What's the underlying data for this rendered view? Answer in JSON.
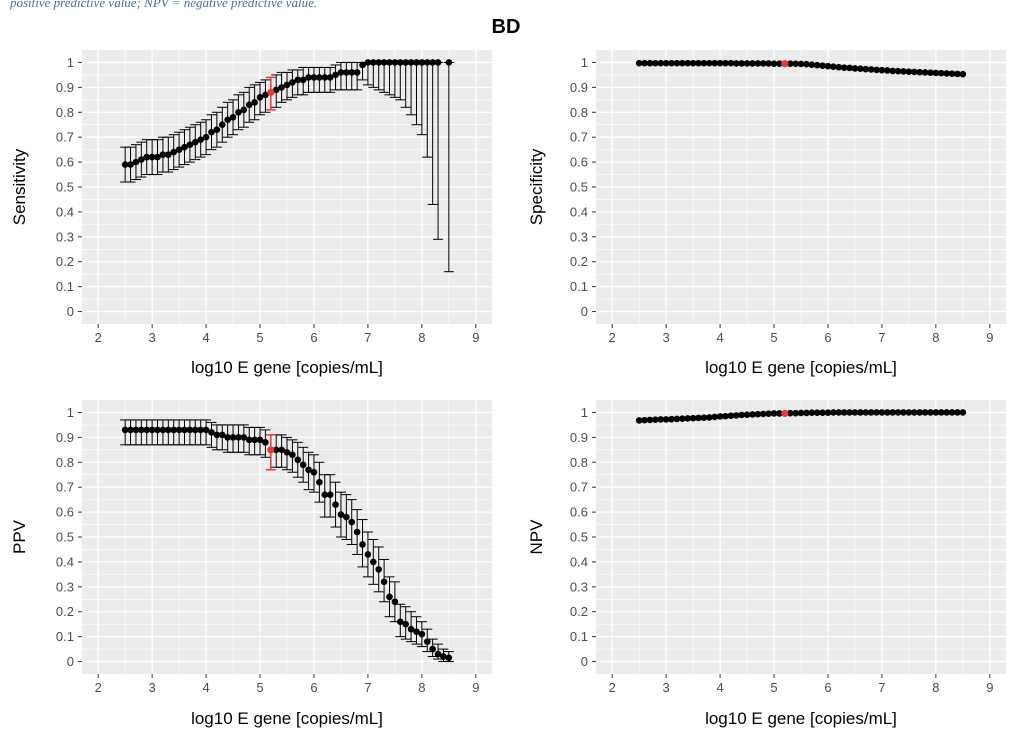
{
  "caption_fragment": "positive predictive value; NPV = negative predictive value.",
  "figure_title": "BD",
  "colors": {
    "panel_bg": "#ebebeb",
    "grid": "#ffffff",
    "point": "#000000",
    "highlight": "#e8383a"
  },
  "chart_data": [
    {
      "type": "scatter",
      "panel": "top-left",
      "xlabel": "log10 E gene [copies/mL]",
      "ylabel": "Sensitivity",
      "xlim": [
        1.7,
        9.3
      ],
      "ylim": [
        -0.05,
        1.05
      ],
      "xticks": [
        2,
        3,
        4,
        5,
        6,
        7,
        8,
        9
      ],
      "yticks": [
        "0",
        "0.1",
        "0.2",
        "0.3",
        "0.4",
        "0.5",
        "0.6",
        "0.7",
        "0.8",
        "0.9",
        "1"
      ],
      "error_bars": true,
      "highlight": {
        "x": 5.2,
        "y": 0.88,
        "lo": 0.81,
        "hi": 0.94
      },
      "points": [
        [
          2.5,
          0.59,
          0.52,
          0.66
        ],
        [
          2.6,
          0.59,
          0.52,
          0.66
        ],
        [
          2.7,
          0.6,
          0.53,
          0.67
        ],
        [
          2.8,
          0.61,
          0.54,
          0.68
        ],
        [
          2.9,
          0.62,
          0.55,
          0.69
        ],
        [
          3.0,
          0.62,
          0.55,
          0.69
        ],
        [
          3.1,
          0.62,
          0.55,
          0.69
        ],
        [
          3.2,
          0.63,
          0.56,
          0.7
        ],
        [
          3.3,
          0.63,
          0.56,
          0.7
        ],
        [
          3.4,
          0.64,
          0.57,
          0.71
        ],
        [
          3.5,
          0.65,
          0.58,
          0.72
        ],
        [
          3.6,
          0.66,
          0.59,
          0.73
        ],
        [
          3.7,
          0.67,
          0.6,
          0.74
        ],
        [
          3.8,
          0.68,
          0.61,
          0.75
        ],
        [
          3.9,
          0.69,
          0.62,
          0.76
        ],
        [
          4.0,
          0.7,
          0.63,
          0.77
        ],
        [
          4.1,
          0.72,
          0.65,
          0.79
        ],
        [
          4.2,
          0.73,
          0.66,
          0.8
        ],
        [
          4.3,
          0.75,
          0.68,
          0.82
        ],
        [
          4.4,
          0.77,
          0.7,
          0.84
        ],
        [
          4.5,
          0.78,
          0.71,
          0.85
        ],
        [
          4.6,
          0.8,
          0.73,
          0.87
        ],
        [
          4.7,
          0.81,
          0.74,
          0.88
        ],
        [
          4.8,
          0.83,
          0.76,
          0.9
        ],
        [
          4.9,
          0.84,
          0.77,
          0.91
        ],
        [
          5.0,
          0.86,
          0.79,
          0.92
        ],
        [
          5.1,
          0.87,
          0.8,
          0.93
        ],
        [
          5.3,
          0.89,
          0.82,
          0.95
        ],
        [
          5.4,
          0.9,
          0.84,
          0.96
        ],
        [
          5.5,
          0.91,
          0.85,
          0.96
        ],
        [
          5.6,
          0.92,
          0.86,
          0.97
        ],
        [
          5.7,
          0.93,
          0.87,
          0.97
        ],
        [
          5.8,
          0.93,
          0.87,
          0.98
        ],
        [
          5.9,
          0.94,
          0.88,
          0.98
        ],
        [
          6.0,
          0.94,
          0.88,
          0.98
        ],
        [
          6.1,
          0.94,
          0.88,
          0.98
        ],
        [
          6.2,
          0.94,
          0.88,
          0.98
        ],
        [
          6.3,
          0.94,
          0.88,
          0.98
        ],
        [
          6.4,
          0.95,
          0.89,
          0.99
        ],
        [
          6.5,
          0.96,
          0.89,
          1.0
        ],
        [
          6.6,
          0.96,
          0.89,
          1.0
        ],
        [
          6.7,
          0.96,
          0.89,
          1.0
        ],
        [
          6.8,
          0.96,
          0.89,
          1.0
        ],
        [
          6.9,
          0.99,
          0.93,
          1.0
        ],
        [
          7.0,
          1.0,
          0.91,
          1.0
        ],
        [
          7.1,
          1.0,
          0.9,
          1.0
        ],
        [
          7.2,
          1.0,
          0.89,
          1.0
        ],
        [
          7.3,
          1.0,
          0.88,
          1.0
        ],
        [
          7.4,
          1.0,
          0.87,
          1.0
        ],
        [
          7.5,
          1.0,
          0.86,
          1.0
        ],
        [
          7.6,
          1.0,
          0.85,
          1.0
        ],
        [
          7.7,
          1.0,
          0.82,
          1.0
        ],
        [
          7.8,
          1.0,
          0.79,
          1.0
        ],
        [
          7.9,
          1.0,
          0.75,
          1.0
        ],
        [
          8.0,
          1.0,
          0.71,
          1.0
        ],
        [
          8.1,
          1.0,
          0.62,
          1.0
        ],
        [
          8.2,
          1.0,
          0.43,
          1.0
        ],
        [
          8.3,
          1.0,
          0.29,
          1.0
        ],
        [
          8.5,
          1.0,
          0.16,
          1.0
        ]
      ]
    },
    {
      "type": "scatter",
      "panel": "top-right",
      "xlabel": "log10 E gene [copies/mL]",
      "ylabel": "Specificity",
      "xlim": [
        1.7,
        9.3
      ],
      "ylim": [
        -0.05,
        1.05
      ],
      "xticks": [
        2,
        3,
        4,
        5,
        6,
        7,
        8,
        9
      ],
      "yticks": [
        "0",
        "0.1",
        "0.2",
        "0.3",
        "0.4",
        "0.5",
        "0.6",
        "0.7",
        "0.8",
        "0.9",
        "1"
      ],
      "error_bars": false,
      "highlight": {
        "x": 5.2,
        "y": 0.995
      },
      "points": [
        [
          2.5,
          0.997
        ],
        [
          2.6,
          0.997
        ],
        [
          2.7,
          0.997
        ],
        [
          2.8,
          0.997
        ],
        [
          2.9,
          0.997
        ],
        [
          3.0,
          0.997
        ],
        [
          3.1,
          0.997
        ],
        [
          3.2,
          0.997
        ],
        [
          3.3,
          0.997
        ],
        [
          3.4,
          0.997
        ],
        [
          3.5,
          0.997
        ],
        [
          3.6,
          0.997
        ],
        [
          3.7,
          0.997
        ],
        [
          3.8,
          0.997
        ],
        [
          3.9,
          0.997
        ],
        [
          4.0,
          0.997
        ],
        [
          4.1,
          0.997
        ],
        [
          4.2,
          0.997
        ],
        [
          4.3,
          0.996
        ],
        [
          4.4,
          0.996
        ],
        [
          4.5,
          0.996
        ],
        [
          4.6,
          0.996
        ],
        [
          4.7,
          0.996
        ],
        [
          4.8,
          0.996
        ],
        [
          4.9,
          0.996
        ],
        [
          5.0,
          0.995
        ],
        [
          5.1,
          0.995
        ],
        [
          5.3,
          0.995
        ],
        [
          5.4,
          0.995
        ],
        [
          5.5,
          0.994
        ],
        [
          5.6,
          0.993
        ],
        [
          5.7,
          0.991
        ],
        [
          5.8,
          0.989
        ],
        [
          5.9,
          0.987
        ],
        [
          6.0,
          0.985
        ],
        [
          6.1,
          0.983
        ],
        [
          6.2,
          0.981
        ],
        [
          6.3,
          0.979
        ],
        [
          6.4,
          0.978
        ],
        [
          6.5,
          0.976
        ],
        [
          6.6,
          0.975
        ],
        [
          6.7,
          0.973
        ],
        [
          6.8,
          0.972
        ],
        [
          6.9,
          0.97
        ],
        [
          7.0,
          0.969
        ],
        [
          7.1,
          0.968
        ],
        [
          7.2,
          0.966
        ],
        [
          7.3,
          0.965
        ],
        [
          7.4,
          0.964
        ],
        [
          7.5,
          0.963
        ],
        [
          7.6,
          0.962
        ],
        [
          7.7,
          0.961
        ],
        [
          7.8,
          0.96
        ],
        [
          7.9,
          0.959
        ],
        [
          8.0,
          0.958
        ],
        [
          8.1,
          0.957
        ],
        [
          8.2,
          0.956
        ],
        [
          8.3,
          0.955
        ],
        [
          8.4,
          0.954
        ],
        [
          8.5,
          0.953
        ]
      ]
    },
    {
      "type": "scatter",
      "panel": "bottom-left",
      "xlabel": "log10 E gene [copies/mL]",
      "ylabel": "PPV",
      "xlim": [
        1.7,
        9.3
      ],
      "ylim": [
        -0.05,
        1.05
      ],
      "xticks": [
        2,
        3,
        4,
        5,
        6,
        7,
        8,
        9
      ],
      "yticks": [
        "0",
        "0.1",
        "0.2",
        "0.3",
        "0.4",
        "0.5",
        "0.6",
        "0.7",
        "0.8",
        "0.9",
        "1"
      ],
      "error_bars": true,
      "highlight": {
        "x": 5.2,
        "y": 0.85,
        "lo": 0.77,
        "hi": 0.91
      },
      "points": [
        [
          2.5,
          0.93,
          0.87,
          0.97
        ],
        [
          2.6,
          0.93,
          0.87,
          0.97
        ],
        [
          2.7,
          0.93,
          0.87,
          0.97
        ],
        [
          2.8,
          0.93,
          0.87,
          0.97
        ],
        [
          2.9,
          0.93,
          0.87,
          0.97
        ],
        [
          3.0,
          0.93,
          0.87,
          0.97
        ],
        [
          3.1,
          0.93,
          0.87,
          0.97
        ],
        [
          3.2,
          0.93,
          0.87,
          0.97
        ],
        [
          3.3,
          0.93,
          0.87,
          0.97
        ],
        [
          3.4,
          0.93,
          0.87,
          0.97
        ],
        [
          3.5,
          0.93,
          0.87,
          0.97
        ],
        [
          3.6,
          0.93,
          0.87,
          0.97
        ],
        [
          3.7,
          0.93,
          0.87,
          0.97
        ],
        [
          3.8,
          0.93,
          0.87,
          0.97
        ],
        [
          3.9,
          0.93,
          0.87,
          0.97
        ],
        [
          4.0,
          0.93,
          0.87,
          0.97
        ],
        [
          4.1,
          0.92,
          0.86,
          0.96
        ],
        [
          4.2,
          0.91,
          0.85,
          0.95
        ],
        [
          4.3,
          0.91,
          0.85,
          0.95
        ],
        [
          4.4,
          0.9,
          0.84,
          0.95
        ],
        [
          4.5,
          0.9,
          0.84,
          0.95
        ],
        [
          4.6,
          0.9,
          0.84,
          0.95
        ],
        [
          4.7,
          0.9,
          0.84,
          0.95
        ],
        [
          4.8,
          0.89,
          0.83,
          0.94
        ],
        [
          4.9,
          0.89,
          0.83,
          0.94
        ],
        [
          5.0,
          0.89,
          0.83,
          0.94
        ],
        [
          5.1,
          0.88,
          0.82,
          0.93
        ],
        [
          5.3,
          0.85,
          0.78,
          0.91
        ],
        [
          5.4,
          0.85,
          0.78,
          0.91
        ],
        [
          5.5,
          0.84,
          0.77,
          0.9
        ],
        [
          5.6,
          0.83,
          0.76,
          0.89
        ],
        [
          5.7,
          0.81,
          0.74,
          0.88
        ],
        [
          5.8,
          0.79,
          0.72,
          0.86
        ],
        [
          5.9,
          0.77,
          0.69,
          0.84
        ],
        [
          6.0,
          0.76,
          0.68,
          0.83
        ],
        [
          6.1,
          0.72,
          0.64,
          0.8
        ],
        [
          6.2,
          0.67,
          0.58,
          0.75
        ],
        [
          6.3,
          0.67,
          0.58,
          0.75
        ],
        [
          6.4,
          0.63,
          0.54,
          0.72
        ],
        [
          6.5,
          0.59,
          0.5,
          0.68
        ],
        [
          6.6,
          0.58,
          0.49,
          0.67
        ],
        [
          6.7,
          0.56,
          0.47,
          0.65
        ],
        [
          6.8,
          0.52,
          0.43,
          0.61
        ],
        [
          6.9,
          0.47,
          0.38,
          0.57
        ],
        [
          7.0,
          0.43,
          0.34,
          0.52
        ],
        [
          7.1,
          0.4,
          0.31,
          0.49
        ],
        [
          7.2,
          0.37,
          0.28,
          0.46
        ],
        [
          7.3,
          0.32,
          0.24,
          0.41
        ],
        [
          7.4,
          0.26,
          0.18,
          0.34
        ],
        [
          7.5,
          0.24,
          0.16,
          0.32
        ],
        [
          7.6,
          0.16,
          0.1,
          0.23
        ],
        [
          7.7,
          0.15,
          0.09,
          0.22
        ],
        [
          7.8,
          0.13,
          0.08,
          0.2
        ],
        [
          7.9,
          0.12,
          0.07,
          0.18
        ],
        [
          8.0,
          0.11,
          0.06,
          0.16
        ],
        [
          8.1,
          0.08,
          0.04,
          0.13
        ],
        [
          8.2,
          0.05,
          0.02,
          0.09
        ],
        [
          8.3,
          0.03,
          0.01,
          0.07
        ],
        [
          8.4,
          0.02,
          0.0,
          0.05
        ],
        [
          8.5,
          0.015,
          0.0,
          0.04
        ]
      ]
    },
    {
      "type": "scatter",
      "panel": "bottom-right",
      "xlabel": "log10 E gene [copies/mL]",
      "ylabel": "NPV",
      "xlim": [
        1.7,
        9.3
      ],
      "ylim": [
        -0.05,
        1.05
      ],
      "xticks": [
        2,
        3,
        4,
        5,
        6,
        7,
        8,
        9
      ],
      "yticks": [
        "0",
        "0.1",
        "0.2",
        "0.3",
        "0.4",
        "0.5",
        "0.6",
        "0.7",
        "0.8",
        "0.9",
        "1"
      ],
      "error_bars": false,
      "highlight": {
        "x": 5.2,
        "y": 0.996
      },
      "points": [
        [
          2.5,
          0.968
        ],
        [
          2.6,
          0.969
        ],
        [
          2.7,
          0.97
        ],
        [
          2.8,
          0.971
        ],
        [
          2.9,
          0.972
        ],
        [
          3.0,
          0.972
        ],
        [
          3.1,
          0.973
        ],
        [
          3.2,
          0.974
        ],
        [
          3.3,
          0.975
        ],
        [
          3.4,
          0.976
        ],
        [
          3.5,
          0.977
        ],
        [
          3.6,
          0.978
        ],
        [
          3.7,
          0.979
        ],
        [
          3.8,
          0.98
        ],
        [
          3.9,
          0.982
        ],
        [
          4.0,
          0.984
        ],
        [
          4.1,
          0.985
        ],
        [
          4.2,
          0.987
        ],
        [
          4.3,
          0.988
        ],
        [
          4.4,
          0.99
        ],
        [
          4.5,
          0.991
        ],
        [
          4.6,
          0.992
        ],
        [
          4.7,
          0.993
        ],
        [
          4.8,
          0.994
        ],
        [
          4.9,
          0.995
        ],
        [
          5.0,
          0.996
        ],
        [
          5.1,
          0.996
        ],
        [
          5.3,
          0.997
        ],
        [
          5.4,
          0.997
        ],
        [
          5.5,
          0.998
        ],
        [
          5.6,
          0.998
        ],
        [
          5.7,
          0.999
        ],
        [
          5.8,
          0.999
        ],
        [
          5.9,
          0.999
        ],
        [
          6.0,
          0.999
        ],
        [
          6.1,
          1.0
        ],
        [
          6.2,
          1.0
        ],
        [
          6.3,
          1.0
        ],
        [
          6.4,
          1.0
        ],
        [
          6.5,
          1.0
        ],
        [
          6.6,
          1.0
        ],
        [
          6.7,
          1.0
        ],
        [
          6.8,
          1.0
        ],
        [
          6.9,
          1.0
        ],
        [
          7.0,
          1.0
        ],
        [
          7.1,
          1.0
        ],
        [
          7.2,
          1.0
        ],
        [
          7.3,
          1.0
        ],
        [
          7.4,
          1.0
        ],
        [
          7.5,
          1.0
        ],
        [
          7.6,
          1.0
        ],
        [
          7.7,
          1.0
        ],
        [
          7.8,
          1.0
        ],
        [
          7.9,
          1.0
        ],
        [
          8.0,
          1.0
        ],
        [
          8.1,
          1.0
        ],
        [
          8.2,
          1.0
        ],
        [
          8.3,
          1.0
        ],
        [
          8.4,
          1.0
        ],
        [
          8.5,
          1.0
        ]
      ]
    }
  ]
}
